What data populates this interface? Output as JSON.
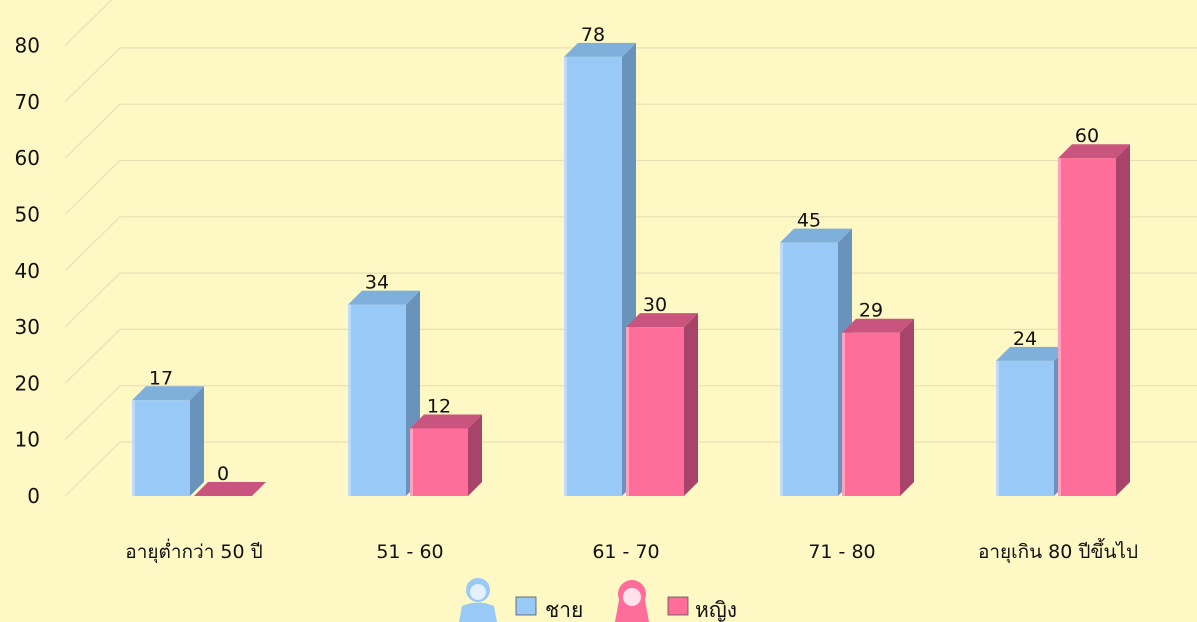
{
  "chart_data": {
    "type": "bar",
    "categories": [
      "อายุต่ำกว่า 50 ปี",
      "51 - 60",
      "61 - 70",
      "71 - 80",
      "อายุเกิน 80 ปีขึ้นไป"
    ],
    "series": [
      {
        "name": "ชาย",
        "values": [
          17,
          34,
          78,
          45,
          24
        ],
        "color": "#99C9F7",
        "side": "#6A93BC",
        "top": "#7FAFDB",
        "icon": "boy-icon"
      },
      {
        "name": "หญิง",
        "values": [
          0,
          12,
          30,
          29,
          60
        ],
        "color": "#FF6D9B",
        "side": "#A84469",
        "top": "#C9557F",
        "icon": "girl-icon"
      }
    ],
    "yticks": [
      "0",
      "10",
      "20",
      "30",
      "40",
      "50",
      "60",
      "70",
      "80"
    ],
    "ylim": [
      0,
      85
    ],
    "title": "",
    "xlabel": "",
    "ylabel": "",
    "grid": true,
    "legend_position": "bottom-center",
    "three_d": true,
    "background": "#FEF9C4"
  }
}
